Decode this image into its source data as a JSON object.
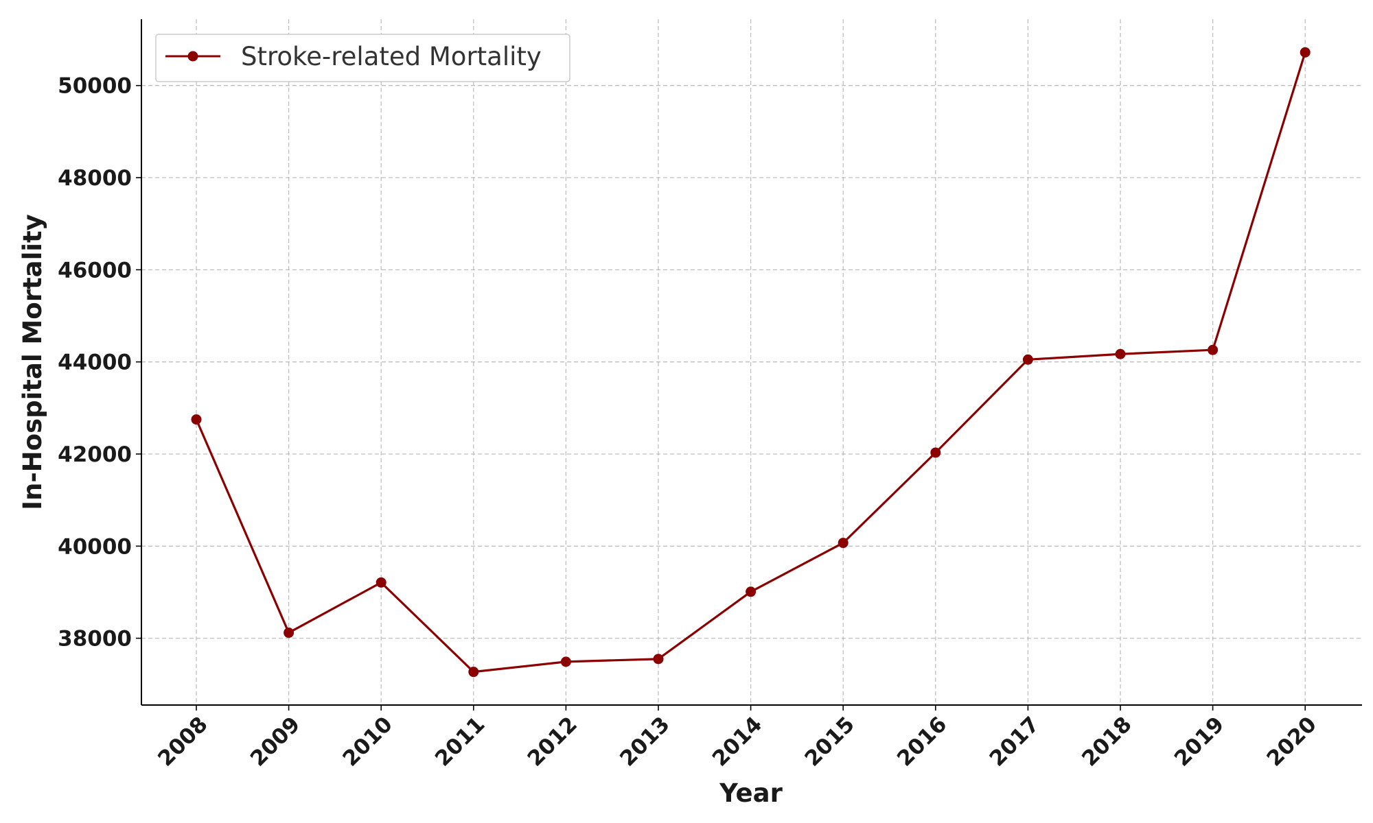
{
  "chart_data": {
    "type": "line",
    "title": "",
    "xlabel": "Year",
    "ylabel": "In-Hospital Mortality",
    "categories": [
      "2008",
      "2009",
      "2010",
      "2011",
      "2012",
      "2013",
      "2014",
      "2015",
      "2016",
      "2017",
      "2018",
      "2019",
      "2020"
    ],
    "series": [
      {
        "name": "Stroke-related Mortality",
        "color": "#8b0000",
        "marker": "circle",
        "values": [
          42750,
          38120,
          39210,
          37270,
          37490,
          37550,
          39010,
          40070,
          42030,
          44050,
          44170,
          44260,
          50720
        ]
      }
    ],
    "yticks": [
      38000,
      40000,
      42000,
      44000,
      46000,
      48000,
      50000
    ],
    "ytick_labels": [
      "38000",
      "40000",
      "42000",
      "44000",
      "46000",
      "48000",
      "50000"
    ],
    "ylim": [
      36550,
      51440
    ],
    "grid": true,
    "legend_position": "top-left"
  }
}
